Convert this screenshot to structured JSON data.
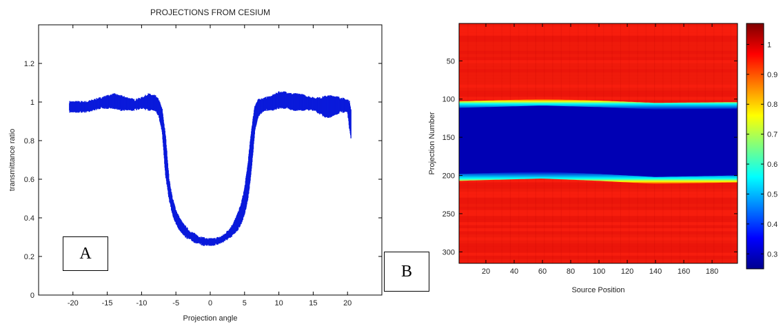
{
  "panels": {
    "a": "A",
    "b": "B"
  },
  "chart_data": [
    {
      "type": "scatter",
      "title": "PROJECTIONS FROM CESIUM",
      "xlabel": "Projection angle",
      "ylabel": "transmittance ratio",
      "xlim": [
        -25,
        25
      ],
      "ylim": [
        0,
        1.4
      ],
      "xticks": [
        -20,
        -15,
        -10,
        -5,
        0,
        5,
        10,
        15,
        20
      ],
      "yticks": [
        0,
        0.2,
        0.4,
        0.6,
        0.8,
        1,
        1.2
      ],
      "yticklabels": [
        "0",
        "0.2",
        "0.4",
        "0.6",
        "0.8",
        "1",
        "1.2"
      ],
      "series": [
        {
          "color": "#0a1adb",
          "x": [
            -20.5,
            -20,
            -19,
            -18,
            -17,
            -16,
            -15,
            -14,
            -13,
            -12,
            -11,
            -10,
            -9,
            -8,
            -7.5,
            -7,
            -6.5,
            -6,
            -5.5,
            -5,
            -4.5,
            -4,
            -3.5,
            -3,
            -2.5,
            -2,
            -1.5,
            -1,
            -0.5,
            0,
            0.5,
            1,
            1.5,
            2,
            2.5,
            3,
            3.5,
            4,
            4.5,
            5,
            5.5,
            6,
            6.5,
            7,
            8,
            9,
            10,
            11,
            12,
            13,
            14,
            15,
            16,
            17,
            18,
            19,
            20,
            20.3,
            20.5
          ],
          "y_low": [
            0.95,
            0.95,
            0.95,
            0.95,
            0.96,
            0.97,
            0.97,
            0.97,
            0.96,
            0.96,
            0.96,
            0.97,
            0.96,
            0.96,
            0.93,
            0.85,
            0.62,
            0.5,
            0.42,
            0.37,
            0.34,
            0.32,
            0.3,
            0.29,
            0.28,
            0.27,
            0.265,
            0.26,
            0.26,
            0.26,
            0.26,
            0.265,
            0.27,
            0.28,
            0.29,
            0.3,
            0.32,
            0.34,
            0.37,
            0.42,
            0.5,
            0.65,
            0.85,
            0.93,
            0.96,
            0.96,
            0.97,
            0.97,
            0.96,
            0.96,
            0.96,
            0.96,
            0.94,
            0.92,
            0.93,
            0.95,
            0.95,
            0.86,
            0.81
          ],
          "y_high": [
            1.0,
            1.0,
            1.0,
            1.0,
            1.01,
            1.02,
            1.03,
            1.04,
            1.03,
            1.02,
            1.01,
            1.02,
            1.04,
            1.03,
            1.01,
            0.96,
            0.82,
            0.6,
            0.5,
            0.44,
            0.4,
            0.37,
            0.35,
            0.33,
            0.32,
            0.31,
            0.3,
            0.295,
            0.29,
            0.29,
            0.29,
            0.295,
            0.3,
            0.31,
            0.33,
            0.35,
            0.38,
            0.42,
            0.47,
            0.55,
            0.68,
            0.85,
            0.98,
            1.01,
            1.02,
            1.03,
            1.05,
            1.05,
            1.04,
            1.04,
            1.03,
            1.02,
            1.02,
            1.03,
            1.03,
            1.02,
            1.01,
            1.0,
            0.96
          ]
        }
      ]
    },
    {
      "type": "heatmap",
      "xlabel": "Source Position",
      "ylabel": "Projection Number",
      "xlim": [
        1,
        198
      ],
      "ylim": [
        1,
        315
      ],
      "y_reversed": true,
      "xticks": [
        20,
        40,
        60,
        80,
        100,
        120,
        140,
        160,
        180
      ],
      "yticks": [
        50,
        100,
        150,
        200,
        250,
        300
      ],
      "colormap": "jet",
      "clim": [
        0.25,
        1.07
      ],
      "colorbar_ticks": [
        0.3,
        0.4,
        0.5,
        0.6,
        0.7,
        0.8,
        0.9,
        1
      ],
      "colorbar_ticklabels": [
        "0.3",
        "0.4",
        "0.5",
        "0.6",
        "0.7",
        "0.8",
        "0.9",
        "1"
      ],
      "background_value": 1.0,
      "band_value": 0.27,
      "band_top": [
        [
          1,
          105
        ],
        [
          20,
          104
        ],
        [
          60,
          102
        ],
        [
          100,
          104
        ],
        [
          140,
          107
        ],
        [
          198,
          106
        ]
      ],
      "band_bottom": [
        [
          1,
          205
        ],
        [
          20,
          204
        ],
        [
          60,
          202
        ],
        [
          100,
          205
        ],
        [
          140,
          209
        ],
        [
          198,
          207
        ]
      ]
    }
  ]
}
